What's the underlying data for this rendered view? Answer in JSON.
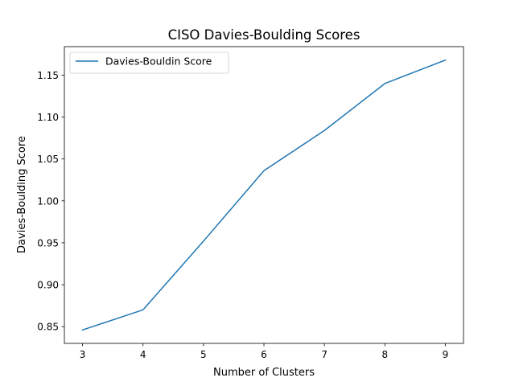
{
  "chart_data": {
    "type": "line",
    "title": "CISO Davies-Boulding Scores",
    "xlabel": "Number of Clusters",
    "ylabel": "Davies-Boulding Score",
    "x": [
      3,
      4,
      5,
      6,
      7,
      8,
      9
    ],
    "series": [
      {
        "name": "Davies-Bouldin Score",
        "color": "#1f77b4",
        "values": [
          0.846,
          0.87,
          0.952,
          1.036,
          1.084,
          1.14,
          1.168
        ]
      }
    ],
    "xticks": [
      "3",
      "4",
      "5",
      "6",
      "7",
      "8",
      "9"
    ],
    "yticks": [
      "0.85",
      "0.90",
      "0.95",
      "1.00",
      "1.05",
      "1.10",
      "1.15"
    ],
    "xlim": [
      2.7,
      9.3
    ],
    "ylim": [
      0.83,
      1.184
    ],
    "grid": false,
    "legend_position": "upper-left"
  }
}
